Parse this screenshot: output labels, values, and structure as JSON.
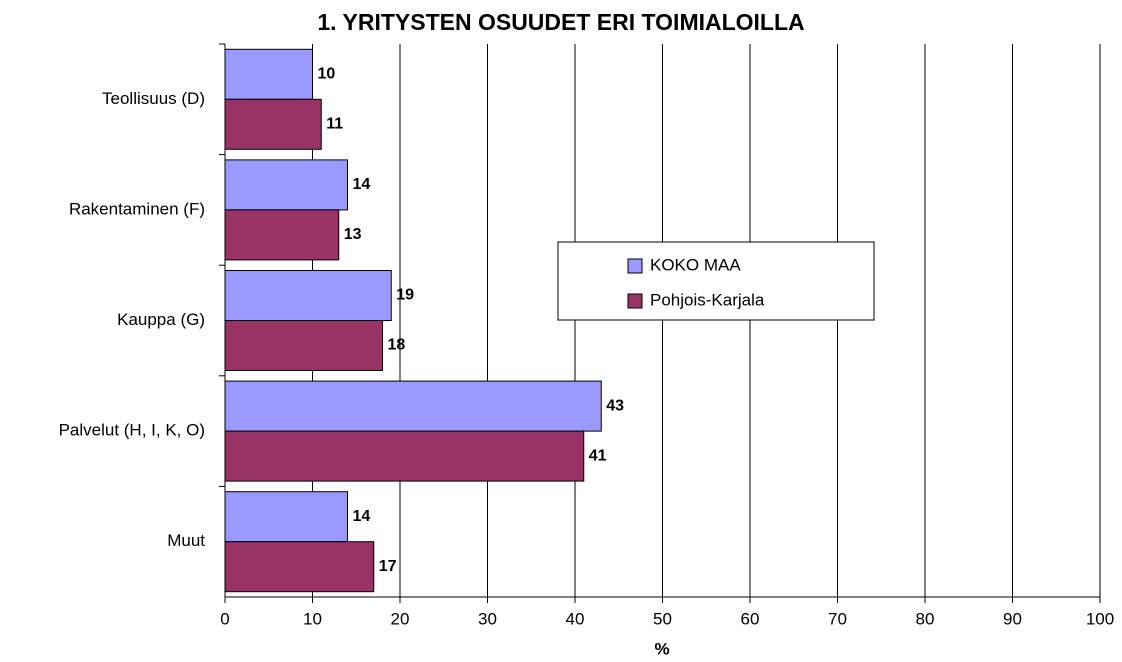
{
  "chart_data": {
    "type": "bar",
    "orientation": "horizontal",
    "title": "1. YRITYSTEN OSUUDET ERI TOIMIALOILLA",
    "x_label": "%",
    "categories": [
      "Teollisuus (D)",
      "Rakentaminen (F)",
      "Kauppa (G)",
      "Palvelut (H, I, K, O)",
      "Muut"
    ],
    "series": [
      {
        "name": "KOKO MAA",
        "color": "#9999ff",
        "values": [
          10,
          14,
          19,
          43,
          14
        ]
      },
      {
        "name": "Pohjois-Karjala",
        "color": "#993366",
        "values": [
          11,
          13,
          18,
          41,
          17
        ]
      }
    ],
    "xlim": [
      0,
      100
    ],
    "xticks": [
      0,
      10,
      20,
      30,
      40,
      50,
      60,
      70,
      80,
      90,
      100
    ],
    "grid": true,
    "legend": "center"
  }
}
